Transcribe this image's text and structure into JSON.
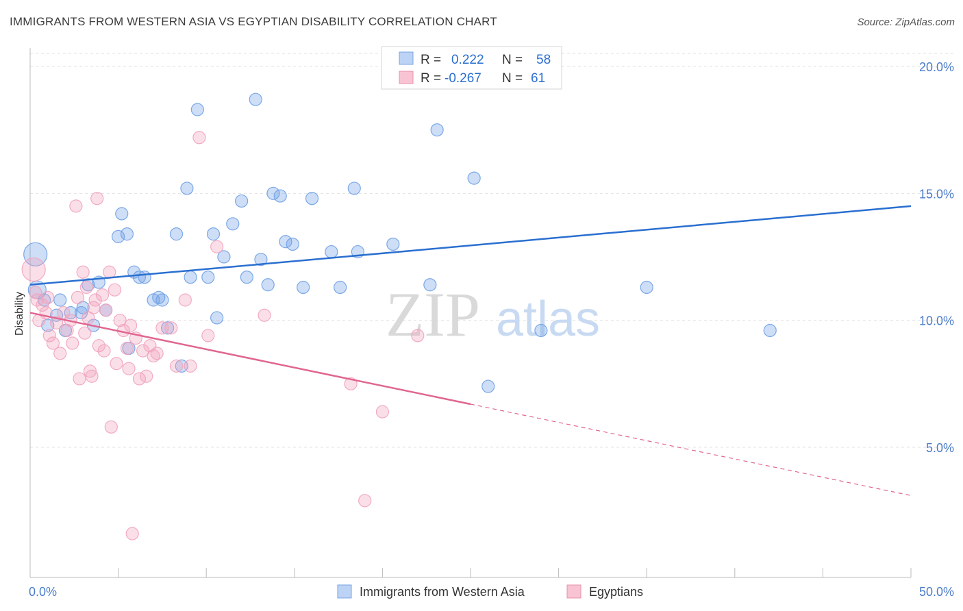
{
  "title": "IMMIGRANTS FROM WESTERN ASIA VS EGYPTIAN DISABILITY CORRELATION CHART",
  "source": "Source: ZipAtlas.com",
  "watermark": {
    "zip": "ZIP",
    "atlas": "atlas"
  },
  "legend": {
    "r_label": "R =",
    "n_label": "N =",
    "rows": [
      {
        "r": "0.222",
        "n": "58"
      },
      {
        "r": "-0.267",
        "n": "61"
      }
    ]
  },
  "chart_data": {
    "type": "scatter",
    "title": "IMMIGRANTS FROM WESTERN ASIA VS EGYPTIAN DISABILITY CORRELATION CHART",
    "xlabel": "",
    "ylabel": "Disability",
    "xlim": [
      0,
      50
    ],
    "ylim": [
      0,
      21
    ],
    "x_tick_labels": [
      "0.0%",
      "50.0%"
    ],
    "y_ticks": [
      5,
      10,
      15,
      20
    ],
    "y_tick_labels": [
      "5.0%",
      "10.0%",
      "15.0%",
      "20.0%"
    ],
    "grid": true,
    "series": [
      {
        "name": "Immigrants from Western Asia",
        "color": "#6fa0e6",
        "line_color": "#2a6fd0",
        "trend": {
          "x": [
            0,
            50
          ],
          "y": [
            11.4,
            14.5
          ],
          "dashed_from": null
        },
        "points": [
          {
            "x": 0.3,
            "y": 12.6,
            "s": "xl"
          },
          {
            "x": 0.4,
            "y": 11.2,
            "s": "l"
          },
          {
            "x": 0.8,
            "y": 10.8
          },
          {
            "x": 1.0,
            "y": 9.8
          },
          {
            "x": 1.5,
            "y": 10.2
          },
          {
            "x": 1.7,
            "y": 10.8
          },
          {
            "x": 2.0,
            "y": 9.6
          },
          {
            "x": 2.3,
            "y": 10.3
          },
          {
            "x": 2.9,
            "y": 10.3
          },
          {
            "x": 3.0,
            "y": 10.5
          },
          {
            "x": 3.3,
            "y": 11.4
          },
          {
            "x": 3.6,
            "y": 9.8
          },
          {
            "x": 3.9,
            "y": 11.5
          },
          {
            "x": 4.3,
            "y": 10.4
          },
          {
            "x": 5.5,
            "y": 13.4
          },
          {
            "x": 5.0,
            "y": 13.3
          },
          {
            "x": 5.2,
            "y": 14.2
          },
          {
            "x": 5.6,
            "y": 8.9
          },
          {
            "x": 5.9,
            "y": 11.9
          },
          {
            "x": 6.2,
            "y": 11.7
          },
          {
            "x": 6.5,
            "y": 11.7
          },
          {
            "x": 7.0,
            "y": 10.8
          },
          {
            "x": 7.3,
            "y": 10.9
          },
          {
            "x": 7.5,
            "y": 10.8
          },
          {
            "x": 7.8,
            "y": 9.7
          },
          {
            "x": 8.3,
            "y": 13.4
          },
          {
            "x": 8.6,
            "y": 8.2
          },
          {
            "x": 8.9,
            "y": 15.2
          },
          {
            "x": 9.1,
            "y": 11.7
          },
          {
            "x": 9.5,
            "y": 18.3
          },
          {
            "x": 10.1,
            "y": 11.7
          },
          {
            "x": 10.4,
            "y": 13.4
          },
          {
            "x": 10.6,
            "y": 10.1
          },
          {
            "x": 11.0,
            "y": 12.5
          },
          {
            "x": 11.5,
            "y": 13.8
          },
          {
            "x": 12.0,
            "y": 14.7
          },
          {
            "x": 12.3,
            "y": 11.7
          },
          {
            "x": 12.8,
            "y": 18.7
          },
          {
            "x": 13.1,
            "y": 12.4
          },
          {
            "x": 13.5,
            "y": 11.4
          },
          {
            "x": 13.8,
            "y": 15.0
          },
          {
            "x": 14.2,
            "y": 14.9
          },
          {
            "x": 14.5,
            "y": 13.1
          },
          {
            "x": 14.9,
            "y": 13.0
          },
          {
            "x": 15.5,
            "y": 11.3
          },
          {
            "x": 16.0,
            "y": 14.8
          },
          {
            "x": 17.1,
            "y": 12.7
          },
          {
            "x": 17.6,
            "y": 11.3
          },
          {
            "x": 18.4,
            "y": 15.2
          },
          {
            "x": 18.6,
            "y": 12.7
          },
          {
            "x": 20.6,
            "y": 13.0
          },
          {
            "x": 22.7,
            "y": 11.4
          },
          {
            "x": 23.1,
            "y": 17.5
          },
          {
            "x": 25.2,
            "y": 15.6
          },
          {
            "x": 26.0,
            "y": 7.4
          },
          {
            "x": 29.0,
            "y": 9.6
          },
          {
            "x": 35.0,
            "y": 11.3
          },
          {
            "x": 42.0,
            "y": 9.6
          }
        ]
      },
      {
        "name": "Egyptians",
        "color": "#f2a3bd",
        "line_color": "#e06690",
        "trend": {
          "x": [
            0,
            50
          ],
          "y": [
            10.3,
            3.1
          ],
          "dashed_from": 25
        },
        "points": [
          {
            "x": 0.2,
            "y": 12.0,
            "s": "xl"
          },
          {
            "x": 0.3,
            "y": 11.1
          },
          {
            "x": 0.4,
            "y": 10.8
          },
          {
            "x": 0.5,
            "y": 10.0
          },
          {
            "x": 0.7,
            "y": 10.6
          },
          {
            "x": 0.9,
            "y": 10.3
          },
          {
            "x": 1.0,
            "y": 10.9
          },
          {
            "x": 1.1,
            "y": 9.4
          },
          {
            "x": 1.3,
            "y": 9.1
          },
          {
            "x": 1.5,
            "y": 9.9
          },
          {
            "x": 1.7,
            "y": 8.7
          },
          {
            "x": 1.9,
            "y": 10.3
          },
          {
            "x": 2.1,
            "y": 9.6
          },
          {
            "x": 2.3,
            "y": 10.0
          },
          {
            "x": 2.4,
            "y": 9.1
          },
          {
            "x": 2.6,
            "y": 14.5
          },
          {
            "x": 2.7,
            "y": 10.9
          },
          {
            "x": 2.8,
            "y": 7.7
          },
          {
            "x": 3.0,
            "y": 11.9
          },
          {
            "x": 3.1,
            "y": 9.5
          },
          {
            "x": 3.2,
            "y": 11.3
          },
          {
            "x": 3.3,
            "y": 10.1
          },
          {
            "x": 3.4,
            "y": 8.0
          },
          {
            "x": 3.5,
            "y": 7.8
          },
          {
            "x": 3.6,
            "y": 10.5
          },
          {
            "x": 3.7,
            "y": 10.8
          },
          {
            "x": 3.8,
            "y": 14.8
          },
          {
            "x": 3.9,
            "y": 9.0
          },
          {
            "x": 4.1,
            "y": 11.0
          },
          {
            "x": 4.2,
            "y": 8.8
          },
          {
            "x": 4.3,
            "y": 10.4
          },
          {
            "x": 4.5,
            "y": 11.9
          },
          {
            "x": 4.6,
            "y": 5.8
          },
          {
            "x": 4.8,
            "y": 11.2
          },
          {
            "x": 4.9,
            "y": 8.3
          },
          {
            "x": 5.1,
            "y": 10.0
          },
          {
            "x": 5.3,
            "y": 9.6
          },
          {
            "x": 5.5,
            "y": 8.9
          },
          {
            "x": 5.6,
            "y": 8.1
          },
          {
            "x": 5.7,
            "y": 9.8
          },
          {
            "x": 5.8,
            "y": 1.6
          },
          {
            "x": 6.0,
            "y": 9.3
          },
          {
            "x": 6.2,
            "y": 7.7
          },
          {
            "x": 6.4,
            "y": 8.8
          },
          {
            "x": 6.6,
            "y": 7.8
          },
          {
            "x": 6.8,
            "y": 9.0
          },
          {
            "x": 7.0,
            "y": 8.6
          },
          {
            "x": 7.2,
            "y": 8.7
          },
          {
            "x": 7.5,
            "y": 9.7
          },
          {
            "x": 8.0,
            "y": 9.7
          },
          {
            "x": 8.3,
            "y": 8.2
          },
          {
            "x": 8.8,
            "y": 10.8
          },
          {
            "x": 9.1,
            "y": 8.2
          },
          {
            "x": 9.6,
            "y": 17.2
          },
          {
            "x": 10.1,
            "y": 9.4
          },
          {
            "x": 10.6,
            "y": 12.9
          },
          {
            "x": 13.3,
            "y": 10.2
          },
          {
            "x": 18.2,
            "y": 7.5
          },
          {
            "x": 19.0,
            "y": 2.9
          },
          {
            "x": 20.0,
            "y": 6.4
          },
          {
            "x": 22.0,
            "y": 9.4
          }
        ]
      }
    ]
  }
}
